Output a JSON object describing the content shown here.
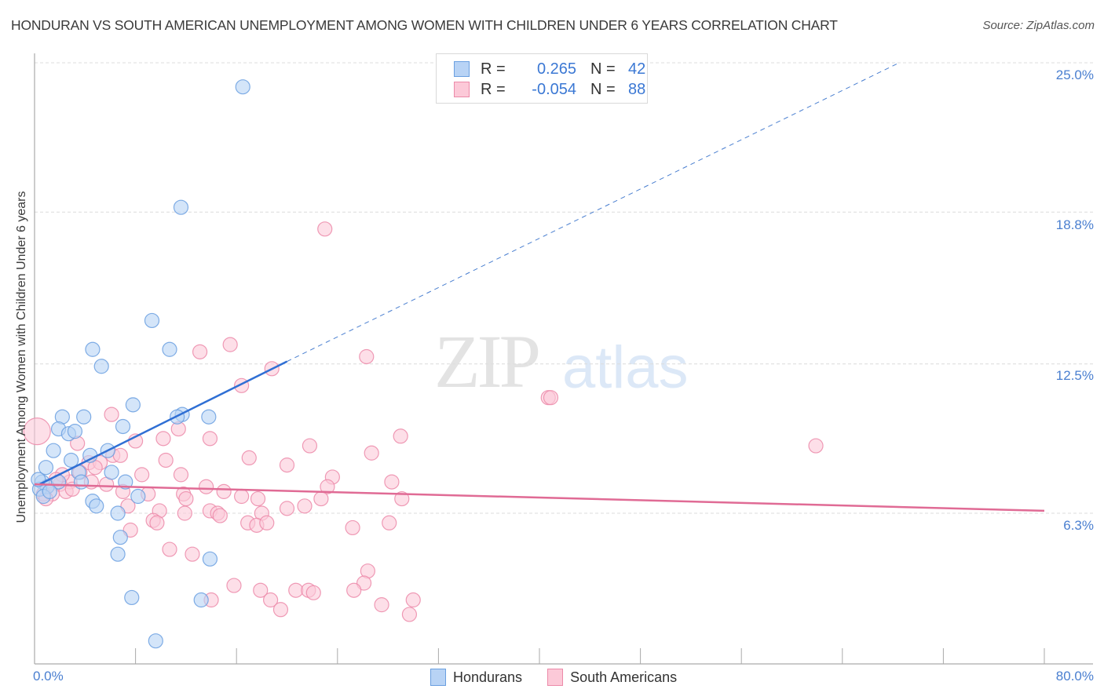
{
  "header": {
    "title": "HONDURAN VS SOUTH AMERICAN UNEMPLOYMENT AMONG WOMEN WITH CHILDREN UNDER 6 YEARS CORRELATION CHART",
    "source": "Source: ZipAtlas.com"
  },
  "watermark": {
    "zip": "ZIP",
    "atlas": "atlas"
  },
  "legend_top": {
    "rows": [
      {
        "r_label": "R =",
        "r_value": "0.265",
        "n_label": "N =",
        "n_value": "42",
        "color": "#b8d3f5",
        "border": "#6a9fe0"
      },
      {
        "r_label": "R =",
        "r_value": "-0.054",
        "n_label": "N =",
        "n_value": "88",
        "color": "#fcc9d8",
        "border": "#ec8aa9"
      }
    ]
  },
  "legend_bottom": {
    "items": [
      {
        "label": "Hondurans",
        "color": "#b8d3f5",
        "border": "#6a9fe0"
      },
      {
        "label": "South Americans",
        "color": "#fcc9d8",
        "border": "#ec8aa9"
      }
    ]
  },
  "axes": {
    "y_label": "Unemployment Among Women with Children Under 6 years",
    "y_ticks": [
      "25.0%",
      "18.8%",
      "12.5%",
      "6.3%"
    ],
    "x_ticks": [
      "0.0%",
      "80.0%"
    ]
  },
  "chart_data": {
    "type": "scatter",
    "title": "HONDURAN VS SOUTH AMERICAN UNEMPLOYMENT AMONG WOMEN WITH CHILDREN UNDER 6 YEARS CORRELATION CHART",
    "xlabel": "",
    "ylabel": "Unemployment Among Women with Children Under 6 years",
    "xlim": [
      0,
      80
    ],
    "ylim": [
      0,
      25.5
    ],
    "y_ticks": [
      6.3,
      12.5,
      18.8,
      25.0
    ],
    "x_tick_labels": [
      "0.0%",
      "80.0%"
    ],
    "grid": true,
    "legend_position": "bottom",
    "series": [
      {
        "name": "Hondurans",
        "color": "#6a9fe0",
        "fill": "#b8d3f5",
        "r": 0.265,
        "n": 42,
        "trend": {
          "x": [
            0.4,
            20.0
          ],
          "y": [
            7.5,
            12.6
          ],
          "extend_dashed_to": [
            68.5,
            25.0
          ]
        },
        "points": [
          [
            16.5,
            24.0
          ],
          [
            11.6,
            19.0
          ],
          [
            9.3,
            14.3
          ],
          [
            4.6,
            13.1
          ],
          [
            10.7,
            13.1
          ],
          [
            5.3,
            12.4
          ],
          [
            7.8,
            10.8
          ],
          [
            11.7,
            10.4
          ],
          [
            11.3,
            10.3
          ],
          [
            13.8,
            10.3
          ],
          [
            2.2,
            10.3
          ],
          [
            3.9,
            10.3
          ],
          [
            1.9,
            9.8
          ],
          [
            2.7,
            9.6
          ],
          [
            3.2,
            9.7
          ],
          [
            7.0,
            9.9
          ],
          [
            1.5,
            8.9
          ],
          [
            5.8,
            8.9
          ],
          [
            4.4,
            8.7
          ],
          [
            2.9,
            8.5
          ],
          [
            0.9,
            8.2
          ],
          [
            3.5,
            8.0
          ],
          [
            6.1,
            8.0
          ],
          [
            0.6,
            7.6
          ],
          [
            1.0,
            7.4
          ],
          [
            1.9,
            7.6
          ],
          [
            3.7,
            7.6
          ],
          [
            7.2,
            7.6
          ],
          [
            0.4,
            7.3
          ],
          [
            0.7,
            7.0
          ],
          [
            8.2,
            7.0
          ],
          [
            4.6,
            6.8
          ],
          [
            4.9,
            6.6
          ],
          [
            6.6,
            6.3
          ],
          [
            6.8,
            5.3
          ],
          [
            6.6,
            4.6
          ],
          [
            13.9,
            4.4
          ],
          [
            7.7,
            2.8
          ],
          [
            13.2,
            2.7
          ],
          [
            9.6,
            1.0
          ],
          [
            0.3,
            7.7
          ],
          [
            1.2,
            7.2
          ]
        ]
      },
      {
        "name": "South Americans",
        "color": "#ec8aa9",
        "fill": "#fcc9d8",
        "r": -0.054,
        "n": 88,
        "trend": {
          "x": [
            0.0,
            80.0
          ],
          "y": [
            7.5,
            6.4
          ]
        },
        "points": [
          [
            23.0,
            18.1
          ],
          [
            13.1,
            13.0
          ],
          [
            15.5,
            13.3
          ],
          [
            26.3,
            12.8
          ],
          [
            18.8,
            12.3
          ],
          [
            16.4,
            11.6
          ],
          [
            40.7,
            11.1
          ],
          [
            40.9,
            11.1
          ],
          [
            6.1,
            10.4
          ],
          [
            11.4,
            9.8
          ],
          [
            0.2,
            9.7
          ],
          [
            29.0,
            9.5
          ],
          [
            13.9,
            9.4
          ],
          [
            10.2,
            9.4
          ],
          [
            8.0,
            9.3
          ],
          [
            3.4,
            9.2
          ],
          [
            21.8,
            9.1
          ],
          [
            61.9,
            9.1
          ],
          [
            6.2,
            8.7
          ],
          [
            6.8,
            8.7
          ],
          [
            17.0,
            8.6
          ],
          [
            26.7,
            8.8
          ],
          [
            4.3,
            8.4
          ],
          [
            10.4,
            8.5
          ],
          [
            5.2,
            8.4
          ],
          [
            20.0,
            8.3
          ],
          [
            3.6,
            8.0
          ],
          [
            8.5,
            7.9
          ],
          [
            11.6,
            7.9
          ],
          [
            23.6,
            7.8
          ],
          [
            2.8,
            7.6
          ],
          [
            4.5,
            7.6
          ],
          [
            13.6,
            7.4
          ],
          [
            23.2,
            7.4
          ],
          [
            28.3,
            7.6
          ],
          [
            2.0,
            7.5
          ],
          [
            1.0,
            7.4
          ],
          [
            2.5,
            7.2
          ],
          [
            1.4,
            7.1
          ],
          [
            3.0,
            7.3
          ],
          [
            0.7,
            7.1
          ],
          [
            9.0,
            7.1
          ],
          [
            11.8,
            7.1
          ],
          [
            16.4,
            7.0
          ],
          [
            17.7,
            6.9
          ],
          [
            22.7,
            6.9
          ],
          [
            29.1,
            6.9
          ],
          [
            7.4,
            6.6
          ],
          [
            9.9,
            6.4
          ],
          [
            11.9,
            6.3
          ],
          [
            13.9,
            6.4
          ],
          [
            14.5,
            6.3
          ],
          [
            18.0,
            6.3
          ],
          [
            20.0,
            6.5
          ],
          [
            21.4,
            6.6
          ],
          [
            14.7,
            6.2
          ],
          [
            9.4,
            6.0
          ],
          [
            9.7,
            5.9
          ],
          [
            16.9,
            5.9
          ],
          [
            17.6,
            5.8
          ],
          [
            18.4,
            5.9
          ],
          [
            25.2,
            5.7
          ],
          [
            28.1,
            5.9
          ],
          [
            7.6,
            5.6
          ],
          [
            10.7,
            4.8
          ],
          [
            12.5,
            4.6
          ],
          [
            26.4,
            3.9
          ],
          [
            26.1,
            3.4
          ],
          [
            15.8,
            3.3
          ],
          [
            17.9,
            3.1
          ],
          [
            20.7,
            3.1
          ],
          [
            21.7,
            3.1
          ],
          [
            22.1,
            3.0
          ],
          [
            25.3,
            3.1
          ],
          [
            18.7,
            2.7
          ],
          [
            14.0,
            2.7
          ],
          [
            30.0,
            2.7
          ],
          [
            27.5,
            2.5
          ],
          [
            19.5,
            2.3
          ],
          [
            29.7,
            2.1
          ],
          [
            4.8,
            8.2
          ],
          [
            2.2,
            7.9
          ],
          [
            1.7,
            7.7
          ],
          [
            5.7,
            7.5
          ],
          [
            7.0,
            7.2
          ],
          [
            0.9,
            6.9
          ],
          [
            12.0,
            6.9
          ],
          [
            15.0,
            7.2
          ]
        ]
      }
    ]
  }
}
